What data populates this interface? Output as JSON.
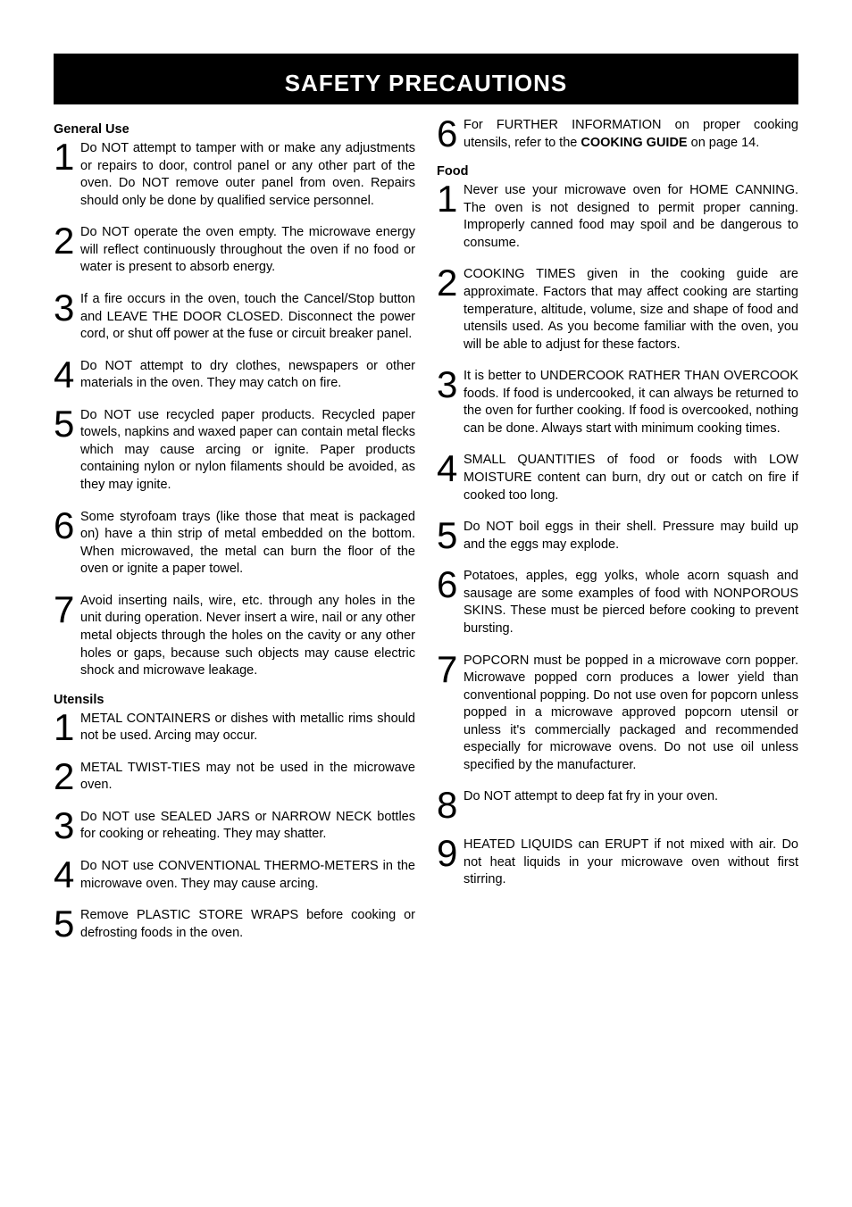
{
  "title": "SAFETY PRECAUTIONS",
  "left": {
    "sections": [
      {
        "heading": "General Use",
        "items": [
          "Do NOT attempt to tamper with or make any adjustments or repairs to door, control panel or any other part of the oven. Do NOT remove outer panel from oven. Repairs should only be done by qualified service personnel.",
          "Do NOT operate the oven empty. The microwave energy will reflect continuously throughout the oven if no food or water is present to absorb energy.",
          "If a fire occurs in the oven, touch the Cancel/Stop button and LEAVE THE DOOR CLOSED. Disconnect the power cord, or shut off power at the fuse or circuit breaker panel.",
          "Do NOT attempt to dry clothes, newspapers or other materials in the oven. They may catch on fire.",
          "Do NOT use recycled paper products. Recycled paper towels, napkins and waxed paper can contain metal flecks which may cause arcing or ignite. Paper products containing nylon or nylon filaments should be avoided, as they may ignite.",
          "Some styrofoam trays (like those that meat is packaged on) have a thin strip of metal embedded on the bottom. When microwaved, the metal can burn the floor of the oven or ignite a paper towel.",
          "Avoid inserting nails, wire, etc. through any holes in the unit during operation. Never insert a wire, nail or any other metal objects through the holes on the cavity or any other holes or gaps, because such objects may cause electric shock and microwave leakage."
        ]
      },
      {
        "heading": "Utensils",
        "items": [
          "METAL CONTAINERS or dishes with metallic rims should not be used. Arcing may occur.",
          "METAL TWIST-TIES may not be used in the microwave oven.",
          "Do NOT use SEALED JARS or NARROW NECK bottles for cooking or reheating. They may shatter.",
          "Do NOT use CONVENTIONAL THERMO-METERS in the microwave oven. They may cause arcing.",
          "Remove PLASTIC STORE WRAPS before cooking or defrosting foods in the oven."
        ]
      }
    ]
  },
  "right": {
    "lead_item": {
      "num": "6",
      "pre": "For FURTHER INFORMATION on proper cooking utensils, refer to the ",
      "bold": "COOKING GUIDE",
      "post": " on page 14."
    },
    "sections": [
      {
        "heading": "Food",
        "items": [
          "Never use your microwave oven for HOME CANNING. The oven is not designed to permit proper canning. Improperly canned food may spoil and be dangerous to consume.",
          "COOKING TIMES given in the cooking guide are approximate. Factors that may affect cooking are starting temperature, altitude, volume, size and shape of food and utensils used. As you become familiar with the oven, you will be able to adjust for these factors.",
          "It is better to UNDERCOOK RATHER THAN OVERCOOK foods. If food is undercooked, it can always be returned to the oven for further cooking. If food is overcooked, nothing can be done. Always start with minimum cooking times.",
          "SMALL QUANTITIES of food or foods with LOW MOISTURE content can burn, dry out or catch on fire if cooked too long.",
          "Do NOT boil eggs in their shell. Pressure may build up and the eggs may explode.",
          "Potatoes, apples, egg yolks, whole acorn squash and sausage are some examples of food with NONPOROUS SKINS. These must be pierced before cooking to prevent bursting.",
          "POPCORN must be popped in a microwave corn popper. Microwave popped corn produces a lower yield than conventional popping. Do not use oven for popcorn unless popped in a microwave approved popcorn utensil or unless it's commercially packaged and recommended especially for microwave ovens. Do not use oil unless specified by the manufacturer.",
          "Do NOT attempt to deep fat fry in your oven.",
          "HEATED LIQUIDS can ERUPT if not mixed with air. Do not heat liquids in your microwave oven without first stirring."
        ]
      }
    ]
  }
}
